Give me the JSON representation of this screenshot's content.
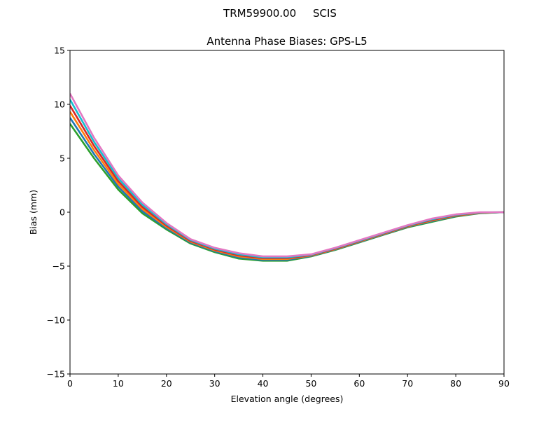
{
  "chart_data": {
    "type": "line",
    "suptitle": "TRM59900.00     SCIS",
    "title": "Antenna Phase Biases: GPS-L5",
    "xlabel": "Elevation angle (degrees)",
    "ylabel": "Bias (mm)",
    "xlim": [
      0,
      90
    ],
    "ylim": [
      -15,
      15
    ],
    "xticks": [
      0,
      10,
      20,
      30,
      40,
      50,
      60,
      70,
      80,
      90
    ],
    "yticks": [
      -15,
      -10,
      -5,
      0,
      5,
      10,
      15
    ],
    "ytick_labels": [
      "−15",
      "−10",
      "−5",
      "0",
      "5",
      "10",
      "15"
    ],
    "grid": false,
    "x": [
      0,
      5,
      10,
      15,
      20,
      25,
      30,
      35,
      40,
      45,
      50,
      55,
      60,
      65,
      70,
      75,
      80,
      85,
      90
    ],
    "series": [
      {
        "color": "#2ca02c",
        "values": [
          8.2,
          5.0,
          2.1,
          -0.1,
          -1.6,
          -2.9,
          -3.7,
          -4.3,
          -4.5,
          -4.5,
          -4.1,
          -3.5,
          -2.8,
          -2.1,
          -1.4,
          -0.9,
          -0.4,
          -0.1,
          0
        ]
      },
      {
        "color": "#1f77b4",
        "values": [
          8.76,
          5.38,
          2.36,
          0.1,
          -1.48,
          -2.82,
          -3.62,
          -4.2,
          -4.42,
          -4.42,
          -4.06,
          -3.46,
          -2.76,
          -2.06,
          -1.36,
          -0.84,
          -0.36,
          -0.08,
          0
        ]
      },
      {
        "color": "#ff7f0e",
        "values": [
          9.32,
          5.76,
          2.62,
          0.3,
          -1.36,
          -2.74,
          -3.54,
          -4.1,
          -4.34,
          -4.34,
          -4.02,
          -3.42,
          -2.72,
          -2.02,
          -1.32,
          -0.78,
          -0.32,
          -0.06,
          0
        ]
      },
      {
        "color": "#d62728",
        "values": [
          9.88,
          6.14,
          2.88,
          0.5,
          -1.24,
          -2.66,
          -3.46,
          -4.0,
          -4.26,
          -4.26,
          -3.98,
          -3.38,
          -2.68,
          -1.98,
          -1.28,
          -0.72,
          -0.28,
          -0.04,
          0
        ]
      },
      {
        "color": "#17becf",
        "values": [
          10.44,
          6.52,
          3.14,
          0.7,
          -1.12,
          -2.58,
          -3.38,
          -3.9,
          -4.18,
          -4.18,
          -3.94,
          -3.34,
          -2.64,
          -1.94,
          -1.24,
          -0.66,
          -0.24,
          -0.02,
          0
        ]
      },
      {
        "color": "#e377c2",
        "values": [
          11.0,
          6.9,
          3.4,
          0.9,
          -1.0,
          -2.5,
          -3.3,
          -3.8,
          -4.1,
          -4.1,
          -3.9,
          -3.3,
          -2.6,
          -1.9,
          -1.2,
          -0.6,
          -0.2,
          0,
          0
        ]
      }
    ]
  }
}
